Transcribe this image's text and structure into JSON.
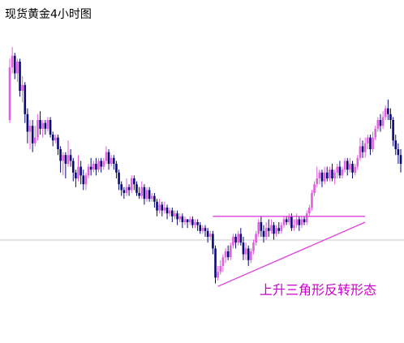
{
  "chart_data": {
    "type": "candlestick",
    "title": "现货黄金4小时图",
    "annotation": "上升三角形反转形态",
    "xlabel": "",
    "ylabel": "",
    "grid": false,
    "colors": {
      "up": "#e060e0",
      "down": "#0a0a78",
      "pattern": "#e040e0",
      "divider": "#c8c8c8",
      "annotation": "#cc00cc"
    },
    "ylim": [
      0,
      100
    ],
    "pattern": {
      "resistance": {
        "x_start": 80,
        "x_end": 140,
        "y": 37
      },
      "support": {
        "x_start": 82,
        "y_start": 13,
        "x_end": 140,
        "y_end": 35
      }
    },
    "candles": [
      [
        70,
        88,
        91,
        69
      ],
      [
        88,
        92,
        95,
        86
      ],
      [
        92,
        86,
        93,
        84
      ],
      [
        86,
        90,
        91,
        83
      ],
      [
        90,
        80,
        91,
        78
      ],
      [
        80,
        82,
        85,
        76
      ],
      [
        82,
        72,
        83,
        69
      ],
      [
        72,
        66,
        74,
        62
      ],
      [
        66,
        68,
        70,
        60
      ],
      [
        68,
        62,
        70,
        59
      ],
      [
        62,
        64,
        68,
        61
      ],
      [
        64,
        70,
        72,
        63
      ],
      [
        70,
        67,
        73,
        65
      ],
      [
        67,
        69,
        70,
        64
      ],
      [
        69,
        67,
        70,
        65
      ],
      [
        67,
        70,
        71,
        66
      ],
      [
        70,
        65,
        71,
        64
      ],
      [
        65,
        63,
        66,
        61
      ],
      [
        63,
        64,
        65,
        62
      ],
      [
        64,
        60,
        65,
        58
      ],
      [
        60,
        56,
        61,
        52
      ],
      [
        56,
        58,
        59,
        51
      ],
      [
        58,
        55,
        59,
        50
      ],
      [
        55,
        58,
        63,
        54
      ],
      [
        58,
        56,
        60,
        54
      ],
      [
        56,
        52,
        57,
        49
      ],
      [
        52,
        50,
        53,
        47
      ],
      [
        50,
        54,
        58,
        49
      ],
      [
        54,
        51,
        56,
        48
      ],
      [
        51,
        48,
        53,
        46
      ],
      [
        48,
        51,
        52,
        46
      ],
      [
        51,
        54,
        55,
        50
      ],
      [
        54,
        53,
        57,
        51
      ],
      [
        53,
        55,
        56,
        52
      ],
      [
        55,
        53,
        57,
        51
      ],
      [
        53,
        56,
        57,
        52
      ],
      [
        56,
        54,
        57,
        52
      ],
      [
        54,
        56,
        57,
        53
      ],
      [
        56,
        59,
        61,
        55
      ],
      [
        59,
        55,
        60,
        53
      ],
      [
        55,
        57,
        58,
        54
      ],
      [
        57,
        55,
        58,
        53
      ],
      [
        55,
        52,
        56,
        50
      ],
      [
        52,
        48,
        53,
        46
      ],
      [
        48,
        46,
        49,
        44
      ],
      [
        46,
        45,
        47,
        43
      ],
      [
        45,
        47,
        50,
        44
      ],
      [
        47,
        46,
        48,
        44
      ],
      [
        46,
        50,
        51,
        45
      ],
      [
        50,
        48,
        51,
        46
      ],
      [
        48,
        45,
        49,
        44
      ],
      [
        45,
        44,
        47,
        43
      ],
      [
        44,
        47,
        49,
        43
      ],
      [
        47,
        43,
        48,
        41
      ],
      [
        43,
        46,
        47,
        42
      ],
      [
        46,
        43,
        47,
        42
      ],
      [
        43,
        44,
        45,
        42
      ],
      [
        44,
        42,
        45,
        40
      ],
      [
        42,
        39,
        43,
        37
      ],
      [
        39,
        41,
        43,
        38
      ],
      [
        41,
        39,
        42,
        37
      ],
      [
        39,
        40,
        42,
        38
      ],
      [
        40,
        38,
        41,
        36
      ],
      [
        38,
        39,
        40,
        37
      ],
      [
        39,
        37,
        40,
        35
      ],
      [
        37,
        38,
        39,
        36
      ],
      [
        38,
        36,
        39,
        34
      ],
      [
        36,
        37,
        38,
        35
      ],
      [
        37,
        35,
        38,
        33
      ],
      [
        35,
        36,
        37,
        34
      ],
      [
        36,
        35,
        36,
        33
      ],
      [
        35,
        36,
        37,
        34
      ],
      [
        36,
        34,
        37,
        33
      ],
      [
        34,
        35,
        36,
        33
      ],
      [
        35,
        34,
        36,
        32
      ],
      [
        34,
        32,
        35,
        31
      ],
      [
        32,
        33,
        34,
        31
      ],
      [
        33,
        32,
        34,
        30
      ],
      [
        32,
        30,
        33,
        28
      ],
      [
        30,
        31,
        32,
        29
      ],
      [
        31,
        26,
        32,
        24
      ],
      [
        26,
        16,
        27,
        14
      ],
      [
        16,
        18,
        20,
        15
      ],
      [
        18,
        20,
        22,
        17
      ],
      [
        20,
        23,
        24,
        18
      ],
      [
        23,
        25,
        26,
        21
      ],
      [
        25,
        23,
        27,
        22
      ],
      [
        23,
        27,
        28,
        22
      ],
      [
        27,
        30,
        31,
        26
      ],
      [
        30,
        28,
        31,
        26
      ],
      [
        28,
        31,
        32,
        27
      ],
      [
        31,
        28,
        33,
        27
      ],
      [
        28,
        24,
        30,
        22
      ],
      [
        24,
        26,
        28,
        22
      ],
      [
        26,
        22,
        27,
        20
      ],
      [
        22,
        25,
        26,
        21
      ],
      [
        25,
        28,
        29,
        24
      ],
      [
        28,
        31,
        32,
        27
      ],
      [
        31,
        35,
        36,
        30
      ],
      [
        35,
        32,
        37,
        30
      ],
      [
        32,
        30,
        34,
        28
      ],
      [
        30,
        33,
        35,
        29
      ],
      [
        33,
        32,
        36,
        30
      ],
      [
        32,
        34,
        36,
        31
      ],
      [
        34,
        31,
        35,
        29
      ],
      [
        31,
        33,
        34,
        30
      ],
      [
        33,
        32,
        35,
        31
      ],
      [
        32,
        34,
        35,
        31
      ],
      [
        34,
        36,
        37,
        33
      ],
      [
        36,
        35,
        37,
        34
      ],
      [
        35,
        37,
        38,
        34
      ],
      [
        37,
        33,
        38,
        32
      ],
      [
        33,
        34,
        36,
        32
      ],
      [
        34,
        36,
        38,
        33
      ],
      [
        36,
        34,
        37,
        32
      ],
      [
        34,
        36,
        37,
        33
      ],
      [
        36,
        35,
        37,
        34
      ],
      [
        35,
        38,
        39,
        34
      ],
      [
        38,
        40,
        41,
        37
      ],
      [
        40,
        45,
        46,
        39
      ],
      [
        45,
        48,
        49,
        44
      ],
      [
        48,
        50,
        54,
        47
      ],
      [
        50,
        52,
        53,
        48
      ],
      [
        52,
        49,
        53,
        47
      ],
      [
        49,
        52,
        54,
        48
      ],
      [
        52,
        50,
        54,
        49
      ],
      [
        50,
        53,
        54,
        49
      ],
      [
        53,
        50,
        55,
        49
      ],
      [
        50,
        52,
        53,
        48
      ],
      [
        52,
        54,
        55,
        50
      ],
      [
        54,
        51,
        56,
        50
      ],
      [
        51,
        53,
        54,
        50
      ],
      [
        53,
        56,
        57,
        52
      ],
      [
        56,
        53,
        57,
        51
      ],
      [
        53,
        55,
        57,
        52
      ],
      [
        55,
        52,
        56,
        50
      ],
      [
        52,
        54,
        55,
        51
      ],
      [
        54,
        57,
        58,
        53
      ],
      [
        57,
        61,
        64,
        56
      ],
      [
        61,
        59,
        63,
        57
      ],
      [
        59,
        62,
        64,
        57
      ],
      [
        62,
        64,
        65,
        60
      ],
      [
        64,
        60,
        65,
        58
      ],
      [
        60,
        64,
        66,
        59
      ],
      [
        64,
        67,
        68,
        63
      ],
      [
        67,
        70,
        71,
        66
      ],
      [
        70,
        68,
        72,
        66
      ],
      [
        68,
        71,
        73,
        67
      ],
      [
        71,
        74,
        75,
        70
      ],
      [
        74,
        72,
        77,
        70
      ],
      [
        72,
        70,
        74,
        67
      ],
      [
        70,
        63,
        71,
        61
      ],
      [
        63,
        60,
        65,
        58
      ],
      [
        60,
        58,
        62,
        55
      ],
      [
        58,
        55,
        60,
        52
      ]
    ]
  }
}
